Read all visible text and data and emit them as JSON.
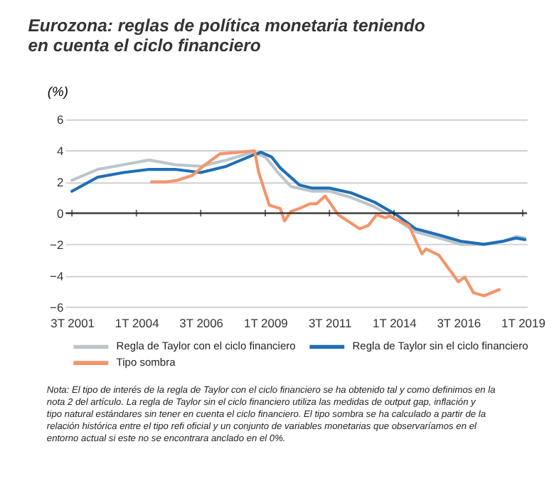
{
  "chart_data": {
    "type": "line",
    "title": "Eurozona: reglas de política monetaria teniendo en cuenta el ciclo financiero",
    "ylabel": "(%)",
    "xlim": [
      "2001-04",
      "2019-03"
    ],
    "xticks": [
      {
        "value": "2001-07",
        "label": "3T 2001"
      },
      {
        "value": "2004-01",
        "label": "1T 2004"
      },
      {
        "value": "2006-07",
        "label": "3T 2006"
      },
      {
        "value": "2009-01",
        "label": "1T 2009"
      },
      {
        "value": "2011-07",
        "label": "3T 2011"
      },
      {
        "value": "2014-01",
        "label": "1T 2014"
      },
      {
        "value": "2016-07",
        "label": "3T 2016"
      },
      {
        "value": "2019-01",
        "label": "1T 2019"
      }
    ],
    "ylim": [
      -6,
      6
    ],
    "yticks": [
      -6,
      -4,
      -2,
      0,
      2,
      4,
      6
    ],
    "grid": "y",
    "legend": "bottom",
    "ref_lines": [
      {
        "axis": "y",
        "value": 0,
        "color": "#222222"
      }
    ],
    "series": [
      {
        "name": "Regla de Taylor con el ciclo financiero",
        "color": "#bcc5ca",
        "x": [
          "2001-07",
          "2002-07",
          "2003-07",
          "2004-07",
          "2005-07",
          "2006-07",
          "2007-07",
          "2008-07",
          "2009-01",
          "2009-07",
          "2010-01",
          "2010-11",
          "2011-07",
          "2012-05",
          "2013-04",
          "2014-02",
          "2014-11",
          "2015-10",
          "2016-08",
          "2017-07",
          "2018-04",
          "2018-10",
          "2019-02"
        ],
        "values": [
          2.1,
          2.8,
          3.1,
          3.4,
          3.1,
          3.0,
          3.4,
          3.9,
          3.6,
          2.6,
          1.7,
          1.4,
          1.4,
          1.0,
          0.4,
          -0.4,
          -1.2,
          -1.6,
          -2.0,
          -2.0,
          -1.8,
          -1.5,
          -1.6
        ]
      },
      {
        "name": "Regla de Taylor sin el ciclo financiero",
        "color": "#1f6fb5",
        "x": [
          "2001-07",
          "2002-07",
          "2003-07",
          "2004-07",
          "2005-07",
          "2006-07",
          "2007-07",
          "2008-07",
          "2008-11",
          "2009-04",
          "2009-08",
          "2010-05",
          "2010-11",
          "2011-07",
          "2012-05",
          "2013-04",
          "2014-02",
          "2014-11",
          "2015-10",
          "2016-08",
          "2017-07",
          "2018-04",
          "2018-10",
          "2019-02"
        ],
        "values": [
          1.4,
          2.3,
          2.6,
          2.8,
          2.8,
          2.6,
          3.0,
          3.7,
          3.9,
          3.6,
          2.9,
          1.8,
          1.6,
          1.6,
          1.3,
          0.7,
          -0.1,
          -1.0,
          -1.4,
          -1.8,
          -2.0,
          -1.8,
          -1.6,
          -1.7
        ]
      },
      {
        "name": "Tipo sombra",
        "color": "#f4946a",
        "x": [
          "2004-08",
          "2005-03",
          "2005-08",
          "2006-03",
          "2006-09",
          "2007-04",
          "2008-01",
          "2008-08",
          "2008-10",
          "2009-03",
          "2009-08",
          "2009-10",
          "2010-01",
          "2010-05",
          "2010-10",
          "2011-01",
          "2011-05",
          "2011-11",
          "2012-09",
          "2013-01",
          "2013-05",
          "2013-09",
          "2013-11",
          "2014-08",
          "2015-02",
          "2015-04",
          "2015-10",
          "2016-07",
          "2016-10",
          "2017-02",
          "2017-07",
          "2018-02"
        ],
        "values": [
          2.0,
          2.0,
          2.1,
          2.4,
          3.1,
          3.8,
          3.9,
          4.0,
          2.6,
          0.5,
          0.3,
          -0.5,
          0.1,
          0.3,
          0.6,
          0.6,
          1.1,
          -0.1,
          -1.0,
          -0.8,
          -0.1,
          -0.3,
          -0.2,
          -0.8,
          -2.6,
          -2.3,
          -2.7,
          -4.4,
          -4.1,
          -5.1,
          -5.3,
          -4.9
        ]
      }
    ],
    "annotations": [
      "Nota: El tipo de interés de la regla de Taylor con el ciclo financiero se ha obtenido tal y como definimos en la nota 2 del artículo. La regla de Taylor sin el ciclo financiero utiliza las medidas de output gap, inflación y tipo natural estándares sin tener en cuenta el ciclo financiero. El tipo sombra se ha calculado a partir de la relación histórica entre el tipo refi oficial y un conjunto de variables monetarias que observaríamos en el entorno actual si este no se encontrara anclado en el 0%."
    ]
  }
}
